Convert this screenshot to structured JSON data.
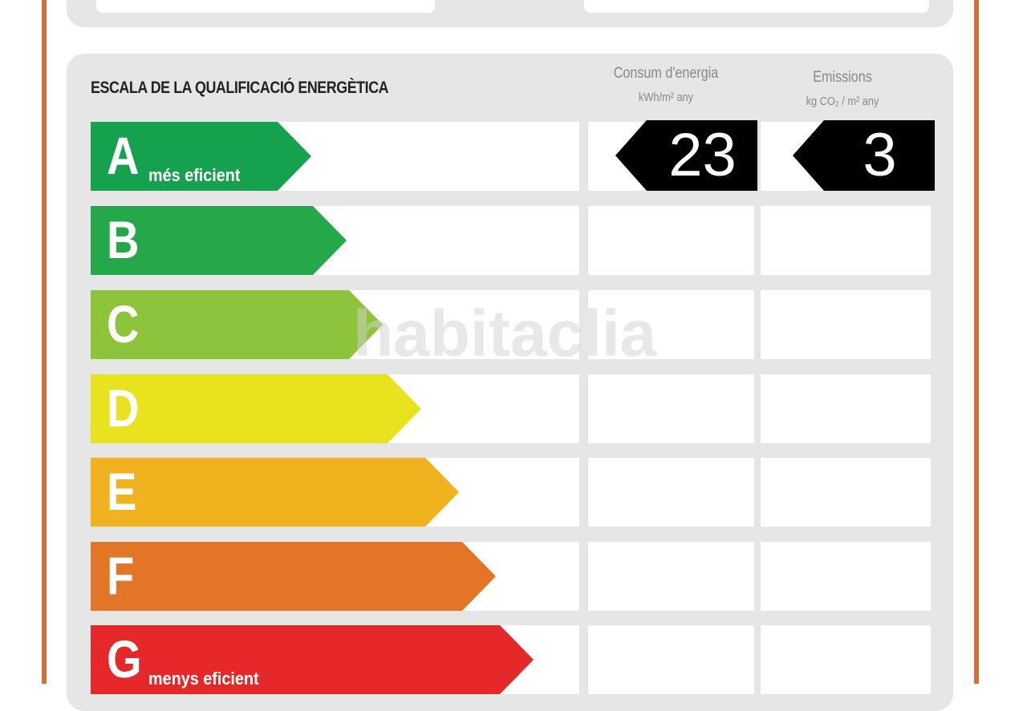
{
  "title": "ESCALA DE LA QUALIFICACIÓ ENERGÈTICA",
  "columns": {
    "consum": "Consum d'energia",
    "consum_unit": "kWh/m² any",
    "emissions": "Emissions",
    "emissions_unit": "kg CO₂ / m² any"
  },
  "watermark": "habitaclia",
  "ratings": [
    {
      "letter": "A",
      "label": "més eficient",
      "color": "#16a14e"
    },
    {
      "letter": "B",
      "label": "",
      "color": "#24a84a"
    },
    {
      "letter": "C",
      "label": "",
      "color": "#8dc43c"
    },
    {
      "letter": "D",
      "label": "",
      "color": "#e9e31f"
    },
    {
      "letter": "E",
      "label": "",
      "color": "#f0b21e"
    },
    {
      "letter": "F",
      "label": "",
      "color": "#e37526"
    },
    {
      "letter": "G",
      "label": "menys eficient",
      "color": "#e5282a"
    }
  ],
  "result": {
    "rating": "A",
    "consum": "23",
    "emissions": "3"
  }
}
